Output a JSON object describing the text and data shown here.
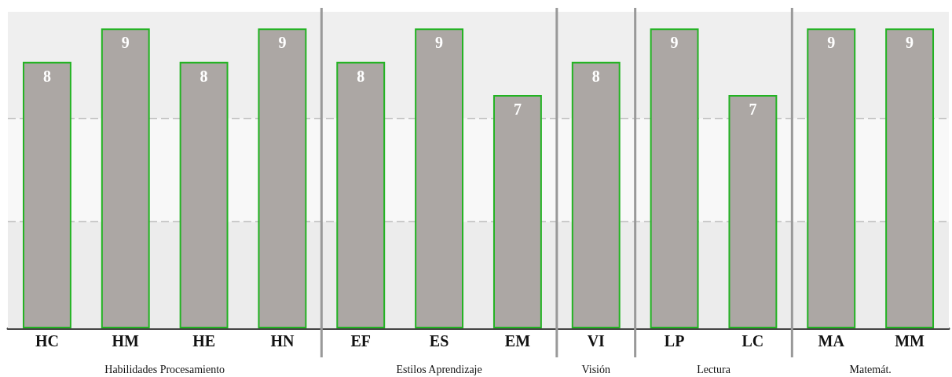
{
  "chart_data": {
    "type": "bar",
    "categories": [
      "HC",
      "HM",
      "HE",
      "HN",
      "EF",
      "ES",
      "EM",
      "VI",
      "LP",
      "LC",
      "MA",
      "MM"
    ],
    "values": [
      8,
      9,
      8,
      9,
      8,
      9,
      7,
      8,
      9,
      7,
      9,
      9
    ],
    "color": "#aca7a4",
    "data_labels": true,
    "ylim": [
      0,
      9.5
    ],
    "tick_labels": "x",
    "bands": [
      {
        "axis": "y",
        "from": 0,
        "to": 3.2,
        "color": "#ececec"
      },
      {
        "axis": "y",
        "from": 3.2,
        "to": 6.3,
        "color": "#f8f8f8"
      },
      {
        "axis": "y",
        "from": 6.3,
        "to": 9.5,
        "color": "#efefef"
      }
    ],
    "ref_lines": [
      {
        "axis": "y",
        "value": 3.2,
        "color": "#bbbbbb",
        "line_style": "dashed"
      },
      {
        "axis": "y",
        "value": 6.3,
        "color": "#bbbbbb",
        "line_style": "dashed"
      }
    ],
    "annotations": [
      "Habilidades Procesamiento",
      "Estilos Aprendizaje",
      "Visión",
      "Lectura",
      "Matemát."
    ]
  }
}
